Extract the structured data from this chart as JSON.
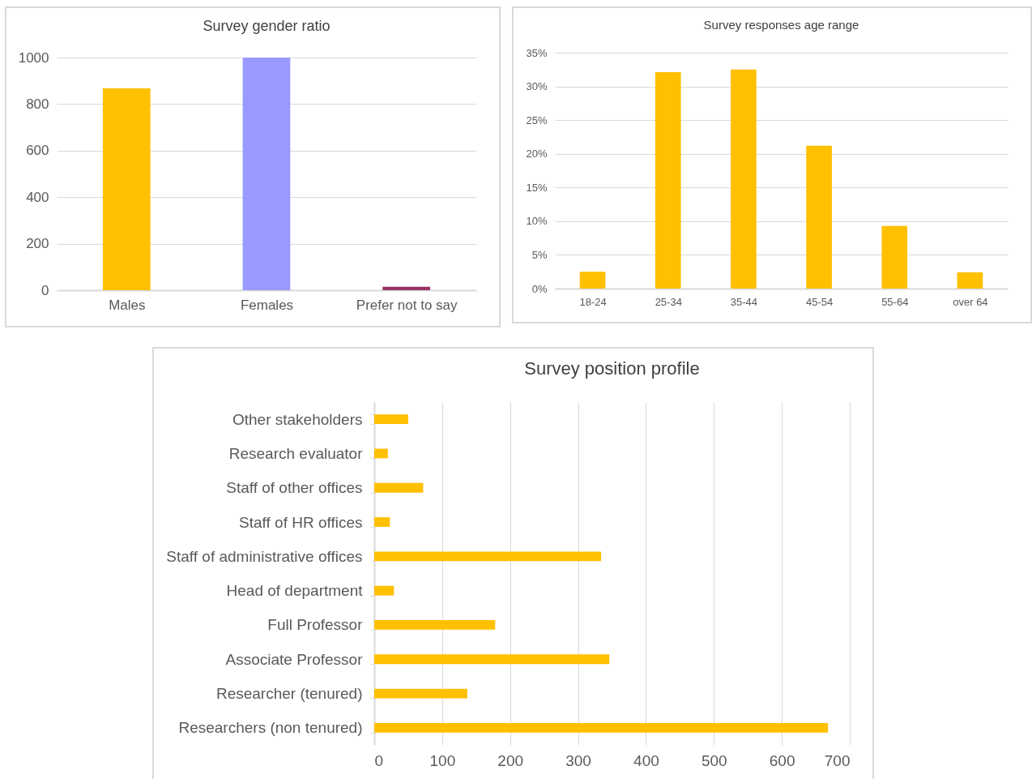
{
  "chart_data": [
    {
      "type": "bar",
      "title": "Survey gender ratio",
      "categories": [
        "Males",
        "Females",
        "Prefer not to say"
      ],
      "values": [
        868,
        1000,
        15
      ],
      "colors": [
        "#ffc000",
        "#9999ff",
        "#993366"
      ],
      "ylim": [
        0,
        1000
      ],
      "yticks": [
        0,
        200,
        400,
        600,
        800,
        1000
      ],
      "grid": "y"
    },
    {
      "type": "bar",
      "title": "Survey responses age range",
      "categories": [
        "18-24",
        "25-34",
        "35-44",
        "45-54",
        "55-64",
        "over 64"
      ],
      "values": [
        2.5,
        32.1,
        32.5,
        21.2,
        9.3,
        2.4
      ],
      "color": "#ffc000",
      "ylim": [
        0,
        35
      ],
      "yticks": [
        {
          "value": 0,
          "label": "0%"
        },
        {
          "value": 5,
          "label": "5%"
        },
        {
          "value": 10,
          "label": "10%"
        },
        {
          "value": 15,
          "label": "15%"
        },
        {
          "value": 20,
          "label": "20%"
        },
        {
          "value": 25,
          "label": "25%"
        },
        {
          "value": 30,
          "label": "30%"
        },
        {
          "value": 35,
          "label": "35%"
        }
      ],
      "grid": "y"
    },
    {
      "type": "bar",
      "orientation": "horizontal",
      "title": "Survey position profile",
      "categories": [
        "Other stakeholders",
        "Research evaluator",
        "Staff of other offices",
        "Staff of HR offices",
        "Staff of administrative offices",
        "Head of department",
        "Full Professor",
        "Associate Professor",
        "Researcher (tenured)",
        "Researchers (non tenured)"
      ],
      "values": [
        50,
        20,
        72,
        23,
        334,
        29,
        178,
        346,
        137,
        668
      ],
      "color": "#ffc000",
      "xlim": [
        0,
        700
      ],
      "xticks": [
        0,
        100,
        200,
        300,
        400,
        500,
        600,
        700
      ],
      "grid": "x"
    }
  ]
}
